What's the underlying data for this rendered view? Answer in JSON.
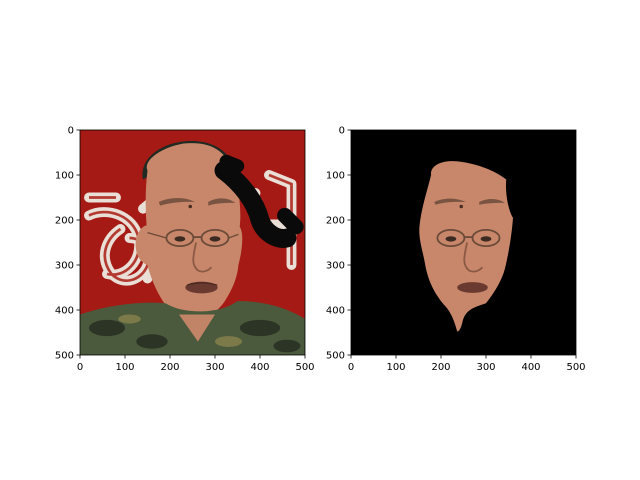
{
  "figure": {
    "panels": [
      {
        "id": "left",
        "description": "photo with occlusion",
        "x_ticks": [
          "0",
          "100",
          "200",
          "300",
          "400",
          "500"
        ],
        "y_ticks": [
          "0",
          "100",
          "200",
          "300",
          "400",
          "500"
        ],
        "xlim": [
          0,
          500
        ],
        "ylim": [
          0,
          500
        ]
      },
      {
        "id": "right",
        "description": "segmented face",
        "x_ticks": [
          "0",
          "100",
          "200",
          "300",
          "400",
          "500"
        ],
        "y_ticks": [
          "0",
          "100",
          "200",
          "300",
          "400",
          "500"
        ],
        "xlim": [
          0,
          500
        ],
        "ylim": [
          0,
          500
        ]
      }
    ]
  }
}
